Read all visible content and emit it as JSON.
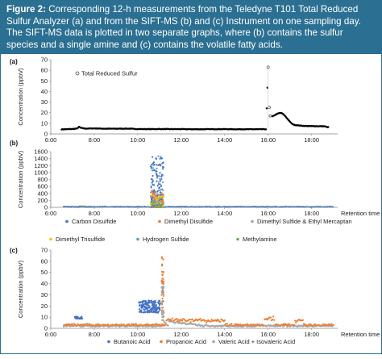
{
  "figure": {
    "caption_label": "Figure 2:",
    "caption_text": " Corresponding 12-h measurements from the Teledyne T101 Total Reduced Sulfur Analyzer (a) and from the SIFT-MS (b) and (c) Instrument on one sampling day. The SIFT-MS data is plotted in two separate graphs, where (b) contains the sulfur species and a single amine and (c) contains the volatile fatty acids."
  },
  "colors": {
    "caption_bg": "#2b7092",
    "trs": "#000000",
    "carbon_disulfide": "#4472c4",
    "dimethyl_disulfide": "#ed7d31",
    "dimethyl_sulfide_ethyl_mercaptan": "#a5a5a5",
    "dimethyl_trisulfide": "#ffc000",
    "hydrogen_sulfide": "#5b9bd5",
    "methylamine": "#70ad47",
    "butanoic_acid": "#4472c4",
    "propanoic_acid": "#ed7d31",
    "valeric_isovaleric_acid": "#a5a5a5"
  },
  "chart_data": [
    {
      "panel_label": "(a)",
      "type": "scatter",
      "ylabel": "Concentration (ppbV)",
      "xlabel": "",
      "yticks": [
        "0",
        "10",
        "20",
        "30",
        "40",
        "50",
        "60",
        "70"
      ],
      "ylim": [
        0,
        70
      ],
      "xticks": [
        "6:00",
        "8:00",
        "10:00",
        "12:00",
        "14:00",
        "16:00",
        "18:00"
      ],
      "xlim_hours": [
        6,
        19.2
      ],
      "grid": false,
      "legend_position": "top-left",
      "series": [
        {
          "name": "Total Reduced Sulfur",
          "color_key": "trs",
          "points": [
            [
              6.5,
              4.3
            ],
            [
              7.0,
              4.6
            ],
            [
              7.2,
              5.0
            ],
            [
              7.3,
              6.6
            ],
            [
              7.4,
              5.6
            ],
            [
              7.6,
              5.0
            ],
            [
              8.0,
              5.2
            ],
            [
              8.5,
              4.9
            ],
            [
              9.0,
              4.9
            ],
            [
              9.5,
              5.0
            ],
            [
              10.0,
              4.6
            ],
            [
              10.5,
              4.5
            ],
            [
              11.0,
              4.6
            ],
            [
              11.5,
              4.5
            ],
            [
              12.0,
              4.5
            ],
            [
              12.5,
              4.4
            ],
            [
              13.0,
              4.4
            ],
            [
              13.5,
              4.5
            ],
            [
              14.0,
              4.5
            ],
            [
              14.5,
              4.4
            ],
            [
              15.0,
              4.4
            ],
            [
              15.5,
              4.4
            ],
            [
              15.9,
              4.4
            ],
            [
              16.0,
              63.0
            ],
            [
              16.05,
              25.0
            ],
            [
              16.1,
              17.0
            ],
            [
              16.2,
              16.5
            ],
            [
              16.3,
              17.6
            ],
            [
              16.4,
              18.8
            ],
            [
              16.5,
              19.5
            ],
            [
              16.6,
              19.8
            ],
            [
              16.7,
              18.5
            ],
            [
              16.8,
              16.5
            ],
            [
              16.9,
              14.0
            ],
            [
              17.0,
              11.5
            ],
            [
              17.1,
              9.5
            ],
            [
              17.2,
              8.5
            ],
            [
              17.4,
              8.0
            ],
            [
              17.6,
              7.6
            ],
            [
              17.8,
              7.4
            ],
            [
              18.0,
              7.3
            ],
            [
              18.2,
              7.3
            ],
            [
              18.4,
              7.2
            ],
            [
              18.6,
              7.2
            ],
            [
              18.7,
              6.5
            ],
            [
              18.8,
              6.2
            ]
          ]
        }
      ]
    },
    {
      "panel_label": "(b)",
      "type": "scatter",
      "ylabel": "Concentration (ppbV)",
      "xlabel": "Retention time",
      "yticks": [
        "0",
        "200",
        "400",
        "600",
        "800",
        "1000",
        "1200",
        "1400",
        "1600"
      ],
      "ylim": [
        0,
        1600
      ],
      "xticks": [
        "6:00",
        "8:00",
        "10:00",
        "12:00",
        "14:00",
        "16:00",
        "18:00"
      ],
      "xlim_hours": [
        6,
        19.2
      ],
      "grid": false,
      "legend_position": "bottom",
      "series": [
        {
          "name": "Carbon Disulfide",
          "color_key": "carbon_disulfide"
        },
        {
          "name": "Dimethyl Disulfide",
          "color_key": "dimethyl_disulfide"
        },
        {
          "name": "Dimethyl Sulfide & Ethyl Mercaptan",
          "color_key": "dimethyl_sulfide_ethyl_mercaptan"
        },
        {
          "name": "Dimethyl Trisulfide",
          "color_key": "dimethyl_trisulfide"
        },
        {
          "name": "Hydrogen Sulfide",
          "color_key": "hydrogen_sulfide"
        },
        {
          "name": "Methylamine",
          "color_key": "methylamine"
        }
      ],
      "peak_window_hours": [
        10.6,
        11.2
      ],
      "peak_max_ppbv": 1500,
      "baseline_ppbv": 15
    },
    {
      "panel_label": "(c)",
      "type": "scatter",
      "ylabel": "Concentration (ppbV)",
      "xlabel": "Retention time",
      "yticks": [
        "0",
        "10",
        "20",
        "30",
        "40",
        "50",
        "60",
        "70"
      ],
      "ylim": [
        0,
        70
      ],
      "xticks": [
        "6:00",
        "8:00",
        "10:00",
        "12:00",
        "14:00",
        "16:00",
        "18:00"
      ],
      "xlim_hours": [
        6,
        19.2
      ],
      "grid": false,
      "legend_position": "bottom",
      "series": [
        {
          "name": "Butanoic Acid",
          "color_key": "butanoic_acid"
        },
        {
          "name": "Propanoic Acid",
          "color_key": "propanoic_acid"
        },
        {
          "name": "Valeric Acid + Isovaleric Acid",
          "color_key": "valeric_isovaleric_acid"
        }
      ],
      "peak_hours": 11.15,
      "peak_max_ppbv": 65,
      "baseline_ppbv": 2
    }
  ]
}
